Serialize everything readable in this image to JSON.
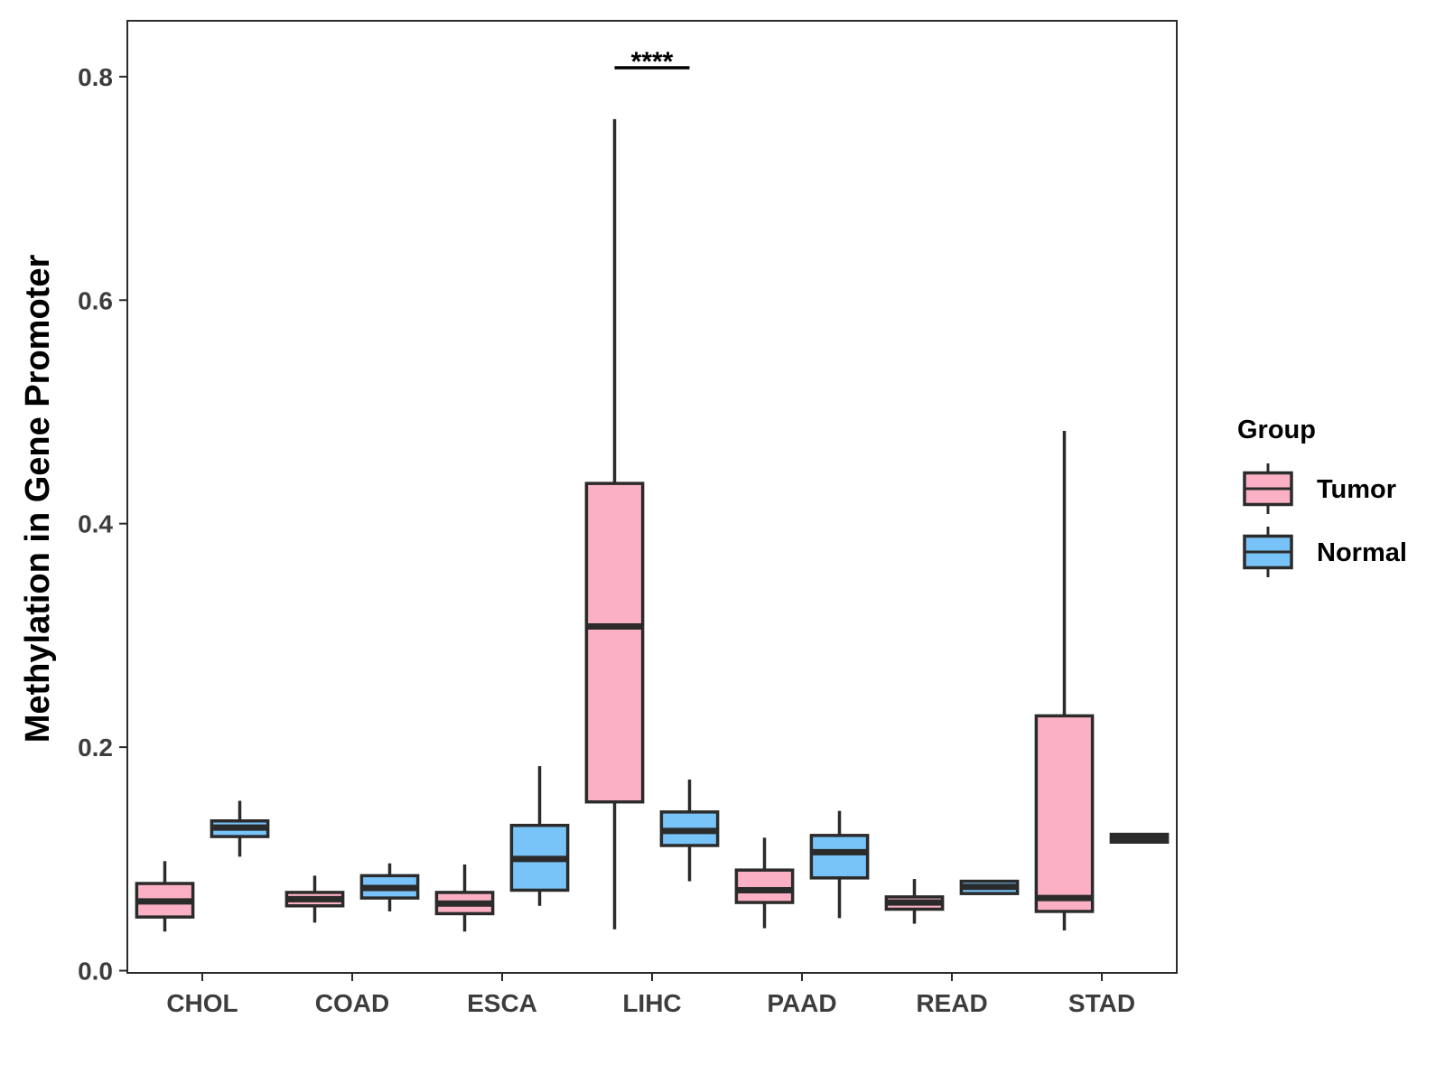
{
  "chart_data": {
    "type": "box",
    "title": "",
    "xlabel": "",
    "ylabel": "Methylation in Gene Promoter",
    "ylim": [
      -0.002,
      0.85
    ],
    "yticks": [
      0.0,
      0.2,
      0.4,
      0.6,
      0.8
    ],
    "ytick_labels": [
      "0.0",
      "0.2",
      "0.4",
      "0.6",
      "0.8"
    ],
    "grid": false,
    "categories": [
      "CHOL",
      "COAD",
      "ESCA",
      "LIHC",
      "PAAD",
      "READ",
      "STAD"
    ],
    "legend": {
      "title": "Group",
      "position": "right",
      "entries": [
        {
          "name": "Tumor",
          "color": "#FBB1C3"
        },
        {
          "name": "Normal",
          "color": "#78C3F7"
        }
      ]
    },
    "series": [
      {
        "name": "Tumor",
        "color": "#FBB1C3",
        "boxes": [
          {
            "category": "CHOL",
            "min": 0.035,
            "q1": 0.048,
            "median": 0.062,
            "q3": 0.078,
            "max": 0.098
          },
          {
            "category": "COAD",
            "min": 0.043,
            "q1": 0.058,
            "median": 0.064,
            "q3": 0.07,
            "max": 0.085
          },
          {
            "category": "ESCA",
            "min": 0.035,
            "q1": 0.051,
            "median": 0.06,
            "q3": 0.07,
            "max": 0.095
          },
          {
            "category": "LIHC",
            "min": 0.037,
            "q1": 0.151,
            "median": 0.308,
            "q3": 0.436,
            "max": 0.762
          },
          {
            "category": "PAAD",
            "min": 0.038,
            "q1": 0.061,
            "median": 0.072,
            "q3": 0.09,
            "max": 0.119
          },
          {
            "category": "READ",
            "min": 0.042,
            "q1": 0.055,
            "median": 0.061,
            "q3": 0.066,
            "max": 0.082
          },
          {
            "category": "STAD",
            "min": 0.036,
            "q1": 0.053,
            "median": 0.065,
            "q3": 0.228,
            "max": 0.483
          }
        ]
      },
      {
        "name": "Normal",
        "color": "#78C3F7",
        "boxes": [
          {
            "category": "CHOL",
            "min": 0.102,
            "q1": 0.12,
            "median": 0.128,
            "q3": 0.134,
            "max": 0.152
          },
          {
            "category": "COAD",
            "min": 0.053,
            "q1": 0.065,
            "median": 0.074,
            "q3": 0.085,
            "max": 0.096
          },
          {
            "category": "ESCA",
            "min": 0.058,
            "q1": 0.072,
            "median": 0.1,
            "q3": 0.13,
            "max": 0.183
          },
          {
            "category": "LIHC",
            "min": 0.08,
            "q1": 0.112,
            "median": 0.125,
            "q3": 0.142,
            "max": 0.171
          },
          {
            "category": "PAAD",
            "min": 0.047,
            "q1": 0.083,
            "median": 0.106,
            "q3": 0.121,
            "max": 0.143
          },
          {
            "category": "READ",
            "min": 0.068,
            "q1": 0.069,
            "median": 0.075,
            "q3": 0.08,
            "max": 0.081
          },
          {
            "category": "STAD",
            "min": 0.114,
            "q1": 0.115,
            "median": 0.119,
            "q3": 0.122,
            "max": 0.123
          }
        ]
      }
    ],
    "annotations": [
      {
        "category": "LIHC",
        "text": "****",
        "y": 0.808
      }
    ]
  }
}
